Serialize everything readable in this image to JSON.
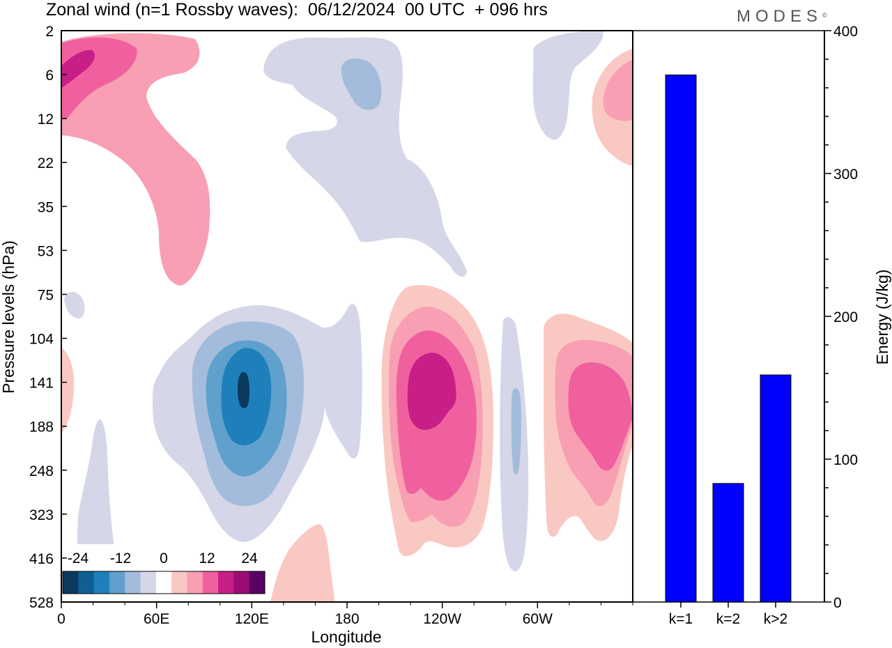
{
  "title": "Zonal wind (n=1 Rossby waves):  06/12/2024  00 UTC  + 096 hrs",
  "brand": "MODES",
  "brand_mark": "©",
  "chart_data": [
    {
      "type": "heatmap",
      "variable": "Zonal wind (n=1 Rossby waves)",
      "xlabel": "Longitude",
      "ylabel": "Pressure levels (hPa)",
      "x_ticks": [
        "0",
        "60E",
        "120E",
        "180",
        "120W",
        "60W"
      ],
      "x_range": [
        0,
        360
      ],
      "y_ticks": [
        "2",
        "6",
        "12",
        "22",
        "35",
        "53",
        "75",
        "104",
        "141",
        "188",
        "248",
        "323",
        "416",
        "528"
      ],
      "y_scale": "log",
      "grid": false,
      "colorbar": {
        "tick_labels": [
          "-24",
          "-12",
          "0",
          "12",
          "24"
        ],
        "levels": [
          -24,
          -20,
          -16,
          -12,
          -8,
          -4,
          4,
          8,
          12,
          16,
          20,
          24
        ],
        "colors": [
          "#0b3a5e",
          "#0f5f92",
          "#1e80bb",
          "#5fa0cd",
          "#a3bcdc",
          "#d5d6e8",
          "#ffffff",
          "#fac8c2",
          "#f89fb3",
          "#f0609e",
          "#c81e87",
          "#9b0c75",
          "#5a0264"
        ]
      },
      "features": [
        {
          "kind": "negative",
          "peak": -24,
          "lon": 115,
          "level_hPa": 141
        },
        {
          "kind": "positive",
          "peak": 20,
          "lon": 234,
          "level_hPa": 141
        },
        {
          "kind": "positive",
          "peak": 16,
          "lon": 329,
          "level_hPa": 141
        },
        {
          "kind": "positive",
          "peak": 16,
          "lon": 17,
          "level_hPa": 6
        },
        {
          "kind": "negative",
          "peak": -8,
          "lon": 190,
          "level_hPa": 6
        },
        {
          "kind": "negative",
          "peak": -8,
          "lon": 287,
          "level_hPa": 188
        }
      ]
    },
    {
      "type": "bar",
      "categories": [
        "k=1",
        "k=2",
        "k>2"
      ],
      "values": [
        369,
        83,
        159
      ],
      "ylabel": "Energy (J/kg)",
      "ylim": [
        0,
        400
      ],
      "y_ticks": [
        "0",
        "100",
        "200",
        "300",
        "400"
      ],
      "bar_color": "#0000ff"
    }
  ]
}
